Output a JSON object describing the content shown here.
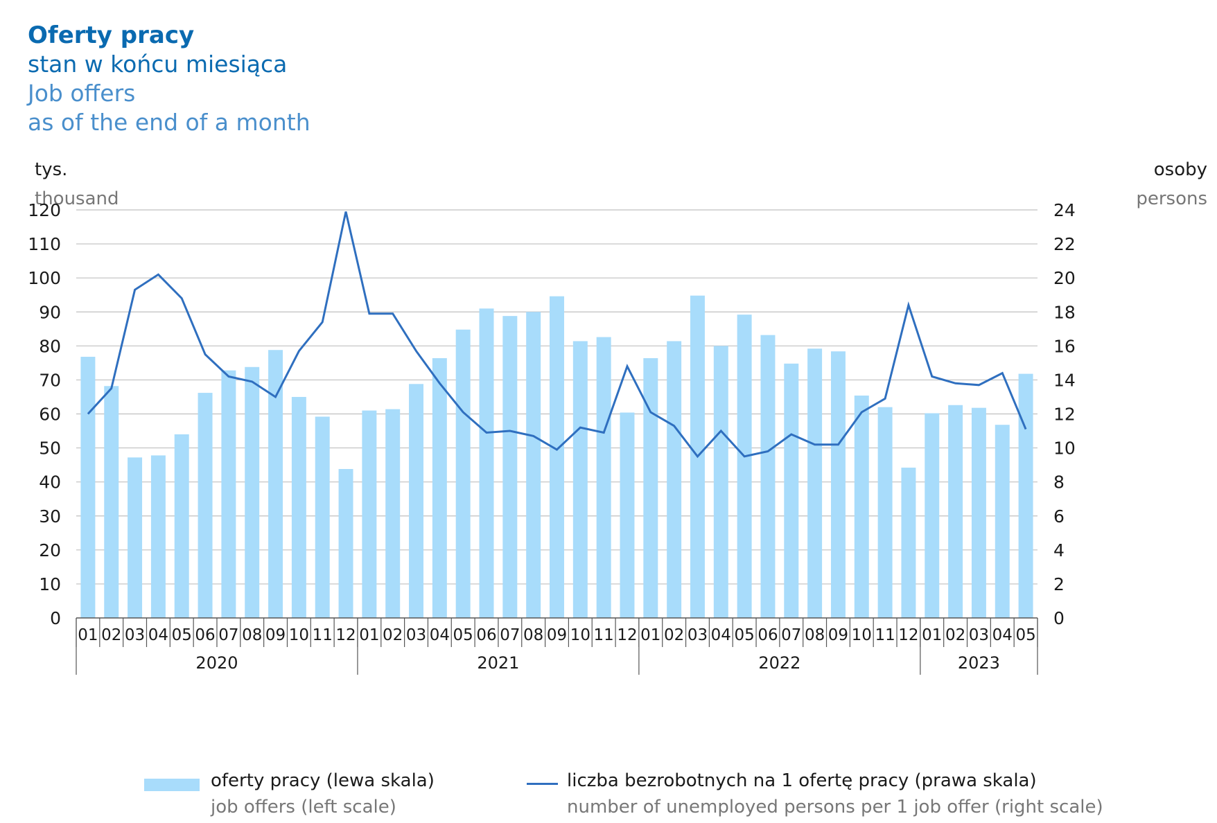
{
  "title": {
    "pl_bold": "Oferty pracy",
    "pl_sub": "stan w końcu miesiąca",
    "en_main": "Job offers",
    "en_sub": "as of the end of a month"
  },
  "axis_units": {
    "left_pl": "tys.",
    "left_en": "thousand",
    "right_pl": "osoby",
    "right_en": "persons"
  },
  "legend": {
    "bars_pl": "oferty pracy (lewa skala)",
    "bars_en": "job offers (left scale)",
    "line_pl": "liczba bezrobotnych na 1 ofertę pracy (prawa skala)",
    "line_en": "number of unemployed persons per 1 job offer (right scale)"
  },
  "colors": {
    "bar": "#a8dcfb",
    "line": "#2f6fbf",
    "grid": "#bfbfbf",
    "title": "#0a6ab0",
    "title_en": "#4a8fcc"
  },
  "chart_data": {
    "type": "bar",
    "categories": [
      "01",
      "02",
      "03",
      "04",
      "05",
      "06",
      "07",
      "08",
      "09",
      "10",
      "11",
      "12",
      "01",
      "02",
      "03",
      "04",
      "05",
      "06",
      "07",
      "08",
      "09",
      "10",
      "11",
      "12",
      "01",
      "02",
      "03",
      "04",
      "05",
      "06",
      "07",
      "08",
      "09",
      "10",
      "11",
      "12",
      "01",
      "02",
      "03",
      "04",
      "05"
    ],
    "years": [
      {
        "label": "2020",
        "months": 12
      },
      {
        "label": "2021",
        "months": 12
      },
      {
        "label": "2022",
        "months": 12
      },
      {
        "label": "2023",
        "months": 5
      }
    ],
    "series": [
      {
        "name": "oferty pracy (lewa skala)",
        "type": "bar",
        "axis": "left",
        "values": [
          76.8,
          68.2,
          47.2,
          47.8,
          54.0,
          66.2,
          72.8,
          73.8,
          78.8,
          65.0,
          59.2,
          43.8,
          61.0,
          61.4,
          68.8,
          76.4,
          84.8,
          91.0,
          88.8,
          90.0,
          94.6,
          81.4,
          82.6,
          60.4,
          76.4,
          81.4,
          94.8,
          80.0,
          89.2,
          83.2,
          74.8,
          79.2,
          78.4,
          65.4,
          62.0,
          44.2,
          60.2,
          62.6,
          61.8,
          56.8,
          71.8
        ]
      },
      {
        "name": "liczba bezrobotnych na 1 ofertę pracy (prawa skala)",
        "type": "line",
        "axis": "right",
        "values": [
          12.0,
          13.5,
          19.3,
          20.2,
          18.8,
          15.5,
          14.2,
          13.9,
          13.0,
          15.7,
          17.4,
          23.9,
          17.9,
          17.9,
          15.7,
          13.8,
          12.1,
          10.9,
          11.0,
          10.7,
          9.9,
          11.2,
          10.9,
          14.8,
          12.1,
          11.3,
          9.5,
          11.0,
          9.5,
          9.8,
          10.8,
          10.2,
          10.2,
          12.1,
          12.9,
          18.4,
          14.2,
          13.8,
          13.7,
          14.4,
          11.1
        ]
      }
    ],
    "y_left": {
      "min": 0,
      "max": 120,
      "step": 10,
      "ticks": [
        "0",
        "10",
        "20",
        "30",
        "40",
        "50",
        "60",
        "70",
        "80",
        "90",
        "100",
        "110",
        "120"
      ]
    },
    "y_right": {
      "min": 0,
      "max": 24,
      "step": 2,
      "ticks": [
        "0",
        "2",
        "4",
        "6",
        "8",
        "10",
        "12",
        "14",
        "16",
        "18",
        "20",
        "22",
        "24"
      ]
    },
    "grid": true,
    "legend_position": "bottom"
  }
}
